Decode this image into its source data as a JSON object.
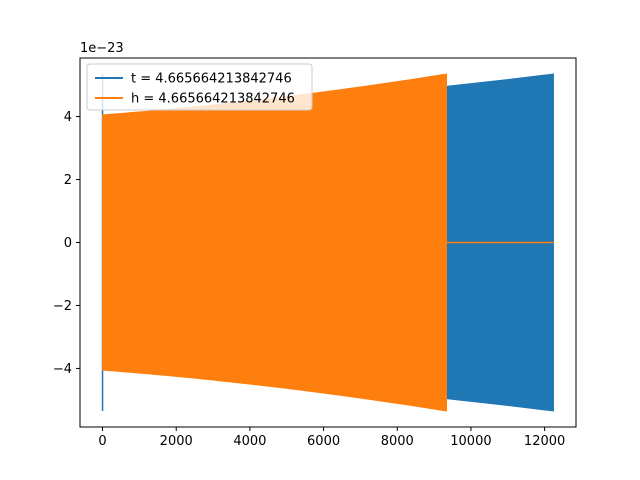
{
  "chart_data": {
    "type": "line",
    "title": "",
    "xlabel": "",
    "ylabel": "",
    "y_offset_label": "1e−23",
    "xlim": [
      -612,
      12852
    ],
    "ylim": [
      -5.86,
      5.86
    ],
    "x_ticks": [
      0,
      2000,
      4000,
      6000,
      8000,
      10000,
      12000
    ],
    "x_tick_labels": [
      "0",
      "2000",
      "4000",
      "6000",
      "8000",
      "10000",
      "12000"
    ],
    "y_ticks": [
      -4,
      -2,
      0,
      2,
      4
    ],
    "y_tick_labels": [
      "−4",
      "−2",
      "0",
      "2",
      "4"
    ],
    "grid": false,
    "legend_position": "upper-left",
    "series": [
      {
        "name": "t = 4.665664213842746",
        "color": "#1f77b4",
        "x_start": 0,
        "x_end": 12240,
        "envelope_start": 4.05,
        "envelope_end": 5.35,
        "spike_max": 5.35
      },
      {
        "name": "h = 4.665664213842746",
        "color": "#ff7f0e",
        "x_start": 0,
        "x_end": 9330,
        "envelope_start": 4.05,
        "envelope_end": 5.35,
        "zero_after_end_until": 12240
      }
    ]
  }
}
